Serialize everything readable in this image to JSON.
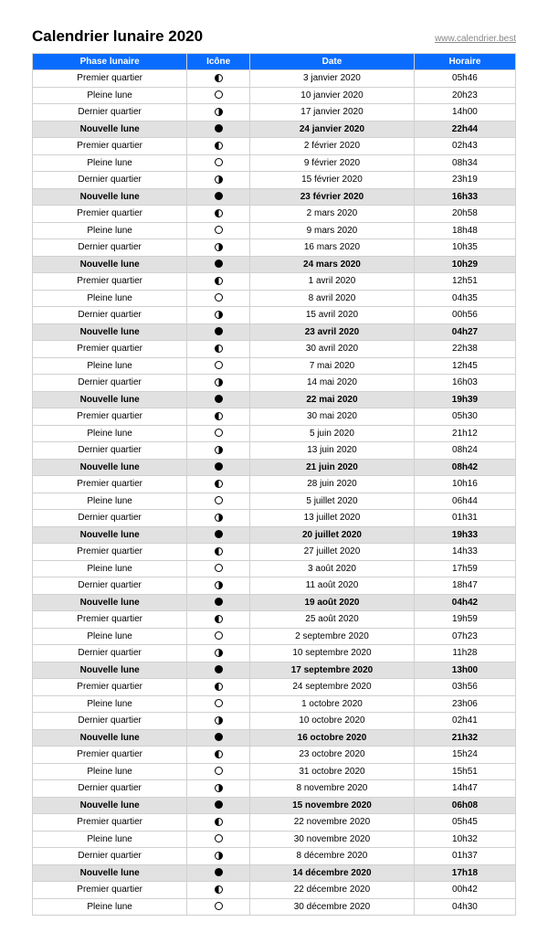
{
  "title": "Calendrier lunaire 2020",
  "site_link": "www.calendrier.best",
  "colors": {
    "header_bg": "#0a6cff",
    "header_fg": "#ffffff",
    "newmoon_bg": "#e1e1e1",
    "border": "#d0d0d0"
  },
  "table": {
    "columns": [
      "Phase lunaire",
      "Icône",
      "Date",
      "Horaire"
    ],
    "rows": [
      {
        "phase": "Premier quartier",
        "icon": "first",
        "date": "3 janvier 2020",
        "time": "05h46",
        "hl": false
      },
      {
        "phase": "Pleine lune",
        "icon": "full",
        "date": "10 janvier 2020",
        "time": "20h23",
        "hl": false
      },
      {
        "phase": "Dernier quartier",
        "icon": "last",
        "date": "17 janvier 2020",
        "time": "14h00",
        "hl": false
      },
      {
        "phase": "Nouvelle lune",
        "icon": "new",
        "date": "24 janvier 2020",
        "time": "22h44",
        "hl": true
      },
      {
        "phase": "Premier quartier",
        "icon": "first",
        "date": "2 février 2020",
        "time": "02h43",
        "hl": false
      },
      {
        "phase": "Pleine lune",
        "icon": "full",
        "date": "9 février 2020",
        "time": "08h34",
        "hl": false
      },
      {
        "phase": "Dernier quartier",
        "icon": "last",
        "date": "15 février 2020",
        "time": "23h19",
        "hl": false
      },
      {
        "phase": "Nouvelle lune",
        "icon": "new",
        "date": "23 février 2020",
        "time": "16h33",
        "hl": true
      },
      {
        "phase": "Premier quartier",
        "icon": "first",
        "date": "2 mars 2020",
        "time": "20h58",
        "hl": false
      },
      {
        "phase": "Pleine lune",
        "icon": "full",
        "date": "9 mars 2020",
        "time": "18h48",
        "hl": false
      },
      {
        "phase": "Dernier quartier",
        "icon": "last",
        "date": "16 mars 2020",
        "time": "10h35",
        "hl": false
      },
      {
        "phase": "Nouvelle lune",
        "icon": "new",
        "date": "24 mars 2020",
        "time": "10h29",
        "hl": true
      },
      {
        "phase": "Premier quartier",
        "icon": "first",
        "date": "1 avril 2020",
        "time": "12h51",
        "hl": false
      },
      {
        "phase": "Pleine lune",
        "icon": "full",
        "date": "8 avril 2020",
        "time": "04h35",
        "hl": false
      },
      {
        "phase": "Dernier quartier",
        "icon": "last",
        "date": "15 avril 2020",
        "time": "00h56",
        "hl": false
      },
      {
        "phase": "Nouvelle lune",
        "icon": "new",
        "date": "23 avril 2020",
        "time": "04h27",
        "hl": true
      },
      {
        "phase": "Premier quartier",
        "icon": "first",
        "date": "30 avril 2020",
        "time": "22h38",
        "hl": false
      },
      {
        "phase": "Pleine lune",
        "icon": "full",
        "date": "7 mai 2020",
        "time": "12h45",
        "hl": false
      },
      {
        "phase": "Dernier quartier",
        "icon": "last",
        "date": "14 mai 2020",
        "time": "16h03",
        "hl": false
      },
      {
        "phase": "Nouvelle lune",
        "icon": "new",
        "date": "22 mai 2020",
        "time": "19h39",
        "hl": true
      },
      {
        "phase": "Premier quartier",
        "icon": "first",
        "date": "30 mai 2020",
        "time": "05h30",
        "hl": false
      },
      {
        "phase": "Pleine lune",
        "icon": "full",
        "date": "5 juin 2020",
        "time": "21h12",
        "hl": false
      },
      {
        "phase": "Dernier quartier",
        "icon": "last",
        "date": "13 juin 2020",
        "time": "08h24",
        "hl": false
      },
      {
        "phase": "Nouvelle lune",
        "icon": "new",
        "date": "21 juin 2020",
        "time": "08h42",
        "hl": true
      },
      {
        "phase": "Premier quartier",
        "icon": "first",
        "date": "28 juin 2020",
        "time": "10h16",
        "hl": false
      },
      {
        "phase": "Pleine lune",
        "icon": "full",
        "date": "5 juillet 2020",
        "time": "06h44",
        "hl": false
      },
      {
        "phase": "Dernier quartier",
        "icon": "last",
        "date": "13 juillet 2020",
        "time": "01h31",
        "hl": false
      },
      {
        "phase": "Nouvelle lune",
        "icon": "new",
        "date": "20 juillet 2020",
        "time": "19h33",
        "hl": true
      },
      {
        "phase": "Premier quartier",
        "icon": "first",
        "date": "27 juillet 2020",
        "time": "14h33",
        "hl": false
      },
      {
        "phase": "Pleine lune",
        "icon": "full",
        "date": "3 août 2020",
        "time": "17h59",
        "hl": false
      },
      {
        "phase": "Dernier quartier",
        "icon": "last",
        "date": "11 août 2020",
        "time": "18h47",
        "hl": false
      },
      {
        "phase": "Nouvelle lune",
        "icon": "new",
        "date": "19 août 2020",
        "time": "04h42",
        "hl": true
      },
      {
        "phase": "Premier quartier",
        "icon": "first",
        "date": "25 août 2020",
        "time": "19h59",
        "hl": false
      },
      {
        "phase": "Pleine lune",
        "icon": "full",
        "date": "2 septembre 2020",
        "time": "07h23",
        "hl": false
      },
      {
        "phase": "Dernier quartier",
        "icon": "last",
        "date": "10 septembre 2020",
        "time": "11h28",
        "hl": false
      },
      {
        "phase": "Nouvelle lune",
        "icon": "new",
        "date": "17 septembre 2020",
        "time": "13h00",
        "hl": true
      },
      {
        "phase": "Premier quartier",
        "icon": "first",
        "date": "24 septembre 2020",
        "time": "03h56",
        "hl": false
      },
      {
        "phase": "Pleine lune",
        "icon": "full",
        "date": "1 octobre 2020",
        "time": "23h06",
        "hl": false
      },
      {
        "phase": "Dernier quartier",
        "icon": "last",
        "date": "10 octobre 2020",
        "time": "02h41",
        "hl": false
      },
      {
        "phase": "Nouvelle lune",
        "icon": "new",
        "date": "16 octobre 2020",
        "time": "21h32",
        "hl": true
      },
      {
        "phase": "Premier quartier",
        "icon": "first",
        "date": "23 octobre 2020",
        "time": "15h24",
        "hl": false
      },
      {
        "phase": "Pleine lune",
        "icon": "full",
        "date": "31 octobre 2020",
        "time": "15h51",
        "hl": false
      },
      {
        "phase": "Dernier quartier",
        "icon": "last",
        "date": "8 novembre 2020",
        "time": "14h47",
        "hl": false
      },
      {
        "phase": "Nouvelle lune",
        "icon": "new",
        "date": "15 novembre 2020",
        "time": "06h08",
        "hl": true
      },
      {
        "phase": "Premier quartier",
        "icon": "first",
        "date": "22 novembre 2020",
        "time": "05h45",
        "hl": false
      },
      {
        "phase": "Pleine lune",
        "icon": "full",
        "date": "30 novembre 2020",
        "time": "10h32",
        "hl": false
      },
      {
        "phase": "Dernier quartier",
        "icon": "last",
        "date": "8 décembre 2020",
        "time": "01h37",
        "hl": false
      },
      {
        "phase": "Nouvelle lune",
        "icon": "new",
        "date": "14 décembre 2020",
        "time": "17h18",
        "hl": true
      },
      {
        "phase": "Premier quartier",
        "icon": "first",
        "date": "22 décembre 2020",
        "time": "00h42",
        "hl": false
      },
      {
        "phase": "Pleine lune",
        "icon": "full",
        "date": "30 décembre 2020",
        "time": "04h30",
        "hl": false
      }
    ]
  }
}
